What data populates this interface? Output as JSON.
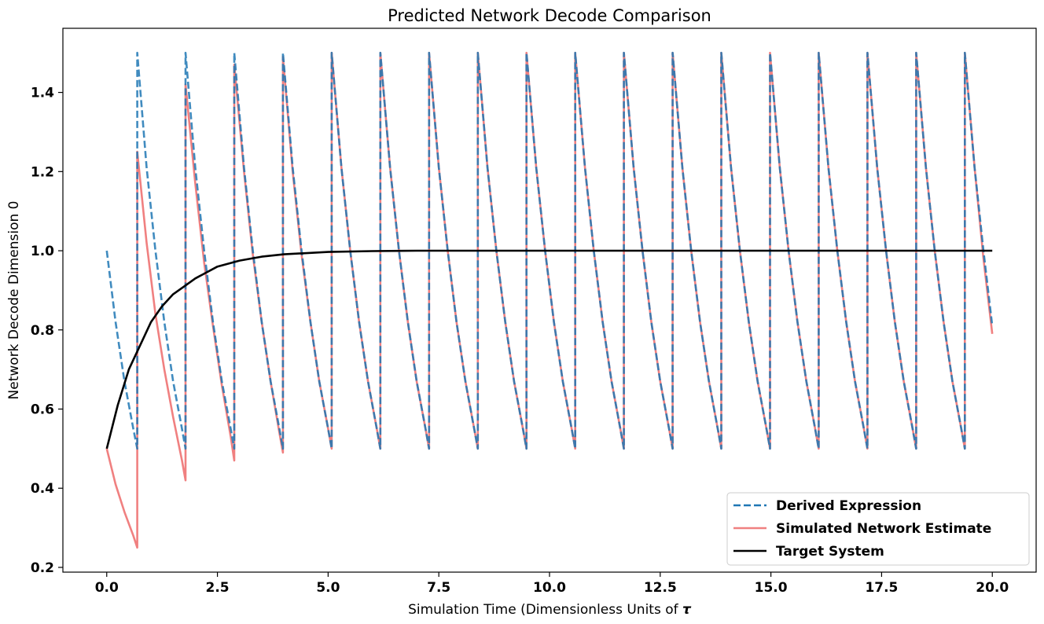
{
  "chart_data": {
    "type": "line",
    "title": "Predicted Network Decode Comparison",
    "xlabel": "Simulation Time (Dimensionless Units of ",
    "xlabel_symbol": "τ",
    "ylabel": "Network Decode Dimension 0",
    "xlim": [
      -0.99,
      20.99
    ],
    "ylim": [
      0.188,
      1.562
    ],
    "xticks": [
      0.0,
      2.5,
      5.0,
      7.5,
      10.0,
      12.5,
      15.0,
      17.5,
      20.0
    ],
    "xtick_labels": [
      "0.0",
      "2.5",
      "5.0",
      "7.5",
      "10.0",
      "12.5",
      "15.0",
      "17.5",
      "20.0"
    ],
    "yticks": [
      0.2,
      0.4,
      0.6,
      0.8,
      1.0,
      1.2,
      1.4
    ],
    "ytick_labels": [
      "0.2",
      "0.4",
      "0.6",
      "0.8",
      "1.0",
      "1.2",
      "1.4"
    ],
    "grid": false,
    "legend_position": "lower right",
    "series": [
      {
        "name": "Simulated Network Estimate",
        "color": "#f08080",
        "style": "solid",
        "points": [
          [
            0.0,
            0.5
          ],
          [
            0.2,
            0.41
          ],
          [
            0.4,
            0.34
          ],
          [
            0.6,
            0.28
          ],
          [
            0.69,
            0.25
          ],
          [
            0.69,
            1.25
          ],
          [
            0.9,
            1.02
          ],
          [
            1.1,
            0.84
          ],
          [
            1.3,
            0.7
          ],
          [
            1.5,
            0.58
          ],
          [
            1.7,
            0.47
          ],
          [
            1.78,
            0.42
          ],
          [
            1.78,
            1.42
          ],
          [
            2.0,
            1.17
          ],
          [
            2.2,
            0.97
          ],
          [
            2.4,
            0.81
          ],
          [
            2.6,
            0.66
          ],
          [
            2.8,
            0.53
          ],
          [
            2.88,
            0.47
          ],
          [
            2.88,
            1.47
          ],
          [
            3.1,
            1.2
          ],
          [
            3.3,
            0.99
          ],
          [
            3.5,
            0.82
          ],
          [
            3.7,
            0.67
          ],
          [
            3.9,
            0.54
          ],
          [
            3.98,
            0.49
          ],
          [
            3.98,
            1.49
          ],
          [
            4.2,
            1.2
          ],
          [
            4.4,
            0.99
          ],
          [
            4.6,
            0.82
          ],
          [
            4.8,
            0.67
          ],
          [
            5.0,
            0.55
          ],
          [
            5.08,
            0.5
          ],
          [
            5.08,
            1.5
          ],
          [
            5.3,
            1.21
          ],
          [
            5.5,
            1.0
          ],
          [
            5.7,
            0.82
          ],
          [
            5.9,
            0.67
          ],
          [
            6.1,
            0.55
          ],
          [
            6.18,
            0.5
          ],
          [
            6.18,
            1.5
          ],
          [
            6.4,
            1.21
          ],
          [
            6.6,
            1.0
          ],
          [
            6.8,
            0.82
          ],
          [
            7.0,
            0.67
          ],
          [
            7.2,
            0.55
          ],
          [
            7.28,
            0.5
          ],
          [
            7.28,
            1.5
          ],
          [
            7.5,
            1.21
          ],
          [
            7.7,
            1.0
          ],
          [
            7.9,
            0.82
          ],
          [
            8.1,
            0.67
          ],
          [
            8.3,
            0.55
          ],
          [
            8.38,
            0.5
          ],
          [
            8.38,
            1.5
          ],
          [
            8.6,
            1.21
          ],
          [
            8.8,
            1.0
          ],
          [
            9.0,
            0.82
          ],
          [
            9.2,
            0.67
          ],
          [
            9.4,
            0.55
          ],
          [
            9.48,
            0.5
          ],
          [
            9.48,
            1.5
          ],
          [
            9.7,
            1.21
          ],
          [
            9.9,
            1.0
          ],
          [
            10.1,
            0.82
          ],
          [
            10.3,
            0.67
          ],
          [
            10.5,
            0.55
          ],
          [
            10.58,
            0.5
          ],
          [
            10.58,
            1.5
          ],
          [
            10.8,
            1.21
          ],
          [
            11.0,
            1.0
          ],
          [
            11.2,
            0.82
          ],
          [
            11.4,
            0.67
          ],
          [
            11.6,
            0.55
          ],
          [
            11.68,
            0.5
          ],
          [
            11.68,
            1.5
          ],
          [
            11.9,
            1.21
          ],
          [
            12.1,
            1.0
          ],
          [
            12.3,
            0.82
          ],
          [
            12.5,
            0.67
          ],
          [
            12.7,
            0.55
          ],
          [
            12.78,
            0.5
          ],
          [
            12.78,
            1.5
          ],
          [
            13.0,
            1.21
          ],
          [
            13.2,
            1.0
          ],
          [
            13.4,
            0.82
          ],
          [
            13.6,
            0.67
          ],
          [
            13.8,
            0.55
          ],
          [
            13.88,
            0.5
          ],
          [
            13.88,
            1.5
          ],
          [
            14.1,
            1.21
          ],
          [
            14.3,
            1.0
          ],
          [
            14.5,
            0.82
          ],
          [
            14.7,
            0.67
          ],
          [
            14.9,
            0.55
          ],
          [
            14.98,
            0.5
          ],
          [
            14.98,
            1.5
          ],
          [
            15.2,
            1.21
          ],
          [
            15.4,
            1.0
          ],
          [
            15.6,
            0.82
          ],
          [
            15.8,
            0.67
          ],
          [
            16.0,
            0.55
          ],
          [
            16.08,
            0.5
          ],
          [
            16.08,
            1.5
          ],
          [
            16.3,
            1.21
          ],
          [
            16.5,
            1.0
          ],
          [
            16.7,
            0.82
          ],
          [
            16.9,
            0.67
          ],
          [
            17.1,
            0.55
          ],
          [
            17.18,
            0.5
          ],
          [
            17.18,
            1.5
          ],
          [
            17.4,
            1.21
          ],
          [
            17.6,
            1.0
          ],
          [
            17.8,
            0.82
          ],
          [
            18.0,
            0.67
          ],
          [
            18.2,
            0.55
          ],
          [
            18.28,
            0.5
          ],
          [
            18.28,
            1.5
          ],
          [
            18.5,
            1.21
          ],
          [
            18.7,
            1.0
          ],
          [
            18.9,
            0.82
          ],
          [
            19.1,
            0.67
          ],
          [
            19.3,
            0.55
          ],
          [
            19.38,
            0.5
          ],
          [
            19.38,
            1.5
          ],
          [
            19.6,
            1.21
          ],
          [
            19.8,
            0.98
          ],
          [
            20.0,
            0.79
          ]
        ]
      },
      {
        "name": "Derived Expression",
        "color": "#1f77b4",
        "style": "dashed",
        "points": [
          [
            0.0,
            1.0
          ],
          [
            0.2,
            0.82
          ],
          [
            0.4,
            0.67
          ],
          [
            0.6,
            0.55
          ],
          [
            0.69,
            0.5
          ],
          [
            0.69,
            1.5
          ],
          [
            0.9,
            1.21
          ],
          [
            1.1,
            1.0
          ],
          [
            1.3,
            0.82
          ],
          [
            1.5,
            0.67
          ],
          [
            1.7,
            0.55
          ],
          [
            1.78,
            0.5
          ],
          [
            1.78,
            1.5
          ],
          [
            2.0,
            1.21
          ],
          [
            2.2,
            1.0
          ],
          [
            2.4,
            0.82
          ],
          [
            2.6,
            0.67
          ],
          [
            2.8,
            0.55
          ],
          [
            2.88,
            0.5
          ],
          [
            2.88,
            1.5
          ],
          [
            3.1,
            1.21
          ],
          [
            3.3,
            1.0
          ],
          [
            3.5,
            0.82
          ],
          [
            3.7,
            0.67
          ],
          [
            3.9,
            0.55
          ],
          [
            3.98,
            0.5
          ],
          [
            3.98,
            1.5
          ],
          [
            4.2,
            1.21
          ],
          [
            4.4,
            1.0
          ],
          [
            4.6,
            0.82
          ],
          [
            4.8,
            0.67
          ],
          [
            5.0,
            0.55
          ],
          [
            5.08,
            0.5
          ],
          [
            5.08,
            1.5
          ],
          [
            5.3,
            1.21
          ],
          [
            5.5,
            1.0
          ],
          [
            5.7,
            0.82
          ],
          [
            5.9,
            0.67
          ],
          [
            6.1,
            0.55
          ],
          [
            6.18,
            0.5
          ],
          [
            6.18,
            1.5
          ],
          [
            6.4,
            1.21
          ],
          [
            6.6,
            1.0
          ],
          [
            6.8,
            0.82
          ],
          [
            7.0,
            0.67
          ],
          [
            7.2,
            0.55
          ],
          [
            7.28,
            0.5
          ],
          [
            7.28,
            1.5
          ],
          [
            7.5,
            1.21
          ],
          [
            7.7,
            1.0
          ],
          [
            7.9,
            0.82
          ],
          [
            8.1,
            0.67
          ],
          [
            8.3,
            0.55
          ],
          [
            8.38,
            0.5
          ],
          [
            8.38,
            1.5
          ],
          [
            8.6,
            1.21
          ],
          [
            8.8,
            1.0
          ],
          [
            9.0,
            0.82
          ],
          [
            9.2,
            0.67
          ],
          [
            9.4,
            0.55
          ],
          [
            9.48,
            0.5
          ],
          [
            9.48,
            1.5
          ],
          [
            9.7,
            1.21
          ],
          [
            9.9,
            1.0
          ],
          [
            10.1,
            0.82
          ],
          [
            10.3,
            0.67
          ],
          [
            10.5,
            0.55
          ],
          [
            10.58,
            0.5
          ],
          [
            10.58,
            1.5
          ],
          [
            10.8,
            1.21
          ],
          [
            11.0,
            1.0
          ],
          [
            11.2,
            0.82
          ],
          [
            11.4,
            0.67
          ],
          [
            11.6,
            0.55
          ],
          [
            11.68,
            0.5
          ],
          [
            11.68,
            1.5
          ],
          [
            11.9,
            1.21
          ],
          [
            12.1,
            1.0
          ],
          [
            12.3,
            0.82
          ],
          [
            12.5,
            0.67
          ],
          [
            12.7,
            0.55
          ],
          [
            12.78,
            0.5
          ],
          [
            12.78,
            1.5
          ],
          [
            13.0,
            1.21
          ],
          [
            13.2,
            1.0
          ],
          [
            13.4,
            0.82
          ],
          [
            13.6,
            0.67
          ],
          [
            13.8,
            0.55
          ],
          [
            13.88,
            0.5
          ],
          [
            13.88,
            1.5
          ],
          [
            14.1,
            1.21
          ],
          [
            14.3,
            1.0
          ],
          [
            14.5,
            0.82
          ],
          [
            14.7,
            0.67
          ],
          [
            14.9,
            0.55
          ],
          [
            14.98,
            0.5
          ],
          [
            14.98,
            1.5
          ],
          [
            15.2,
            1.21
          ],
          [
            15.4,
            1.0
          ],
          [
            15.6,
            0.82
          ],
          [
            15.8,
            0.67
          ],
          [
            16.0,
            0.55
          ],
          [
            16.08,
            0.5
          ],
          [
            16.08,
            1.5
          ],
          [
            16.3,
            1.21
          ],
          [
            16.5,
            1.0
          ],
          [
            16.7,
            0.82
          ],
          [
            16.9,
            0.67
          ],
          [
            17.1,
            0.55
          ],
          [
            17.18,
            0.5
          ],
          [
            17.18,
            1.5
          ],
          [
            17.4,
            1.21
          ],
          [
            17.6,
            1.0
          ],
          [
            17.8,
            0.82
          ],
          [
            18.0,
            0.67
          ],
          [
            18.2,
            0.55
          ],
          [
            18.28,
            0.5
          ],
          [
            18.28,
            1.5
          ],
          [
            18.5,
            1.21
          ],
          [
            18.7,
            1.0
          ],
          [
            18.9,
            0.82
          ],
          [
            19.1,
            0.67
          ],
          [
            19.3,
            0.55
          ],
          [
            19.38,
            0.5
          ],
          [
            19.38,
            1.5
          ],
          [
            19.6,
            1.21
          ],
          [
            19.8,
            1.0
          ],
          [
            20.0,
            0.81
          ]
        ]
      },
      {
        "name": "Target System",
        "color": "#000000",
        "style": "solid",
        "points": [
          [
            0.0,
            0.5
          ],
          [
            0.25,
            0.61
          ],
          [
            0.5,
            0.7
          ],
          [
            0.75,
            0.76
          ],
          [
            1.0,
            0.82
          ],
          [
            1.25,
            0.86
          ],
          [
            1.5,
            0.89
          ],
          [
            1.75,
            0.91
          ],
          [
            2.0,
            0.93
          ],
          [
            2.5,
            0.96
          ],
          [
            3.0,
            0.975
          ],
          [
            3.5,
            0.985
          ],
          [
            4.0,
            0.991
          ],
          [
            5.0,
            0.997
          ],
          [
            6.0,
            0.999
          ],
          [
            7.0,
            1.0
          ],
          [
            10.0,
            1.0
          ],
          [
            15.0,
            1.0
          ],
          [
            20.0,
            1.0
          ]
        ]
      }
    ],
    "legend_entries": [
      "Derived Expression",
      "Simulated Network Estimate",
      "Target System"
    ]
  }
}
